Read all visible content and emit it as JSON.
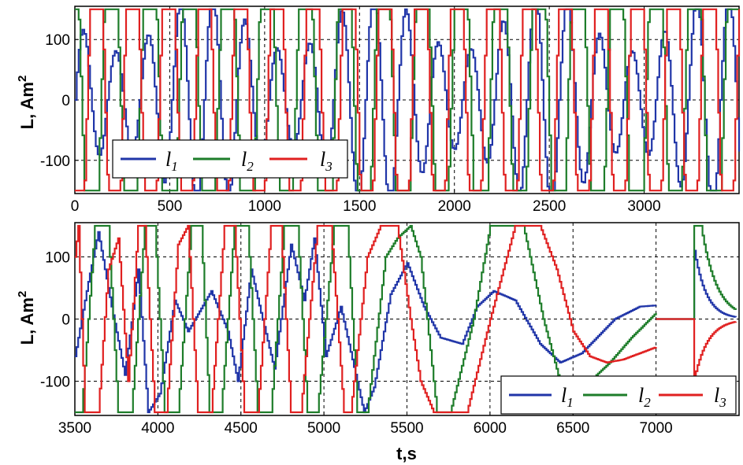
{
  "colors": {
    "l1": "#2035a8",
    "l2": "#1e7d2a",
    "l3": "#e02020"
  },
  "chart_data": [
    {
      "type": "line",
      "title": "",
      "xlabel": "",
      "ylabel_main": "L, Am",
      "ylabel_sup": "2",
      "xlim": [
        0,
        3500
      ],
      "ylim": [
        -155,
        155
      ],
      "xticks": [
        "0",
        "500",
        "1000",
        "1500",
        "2000",
        "2500",
        "3000"
      ],
      "xtick_values": [
        0,
        500,
        1000,
        1500,
        2000,
        2500,
        3000
      ],
      "yticks": [
        "100",
        "0",
        "-100"
      ],
      "ytick_values": [
        100,
        0,
        -100
      ],
      "grid": true,
      "legend_position": "bottom-left",
      "series": [
        {
          "name": "l",
          "sub": "1",
          "color_key": "l1",
          "saturation": 150,
          "segments": [
            {
              "t0": 0,
              "t1": 3500,
              "period": 170,
              "amp": 180,
              "phase": 0.0,
              "amp_mod": 0.55,
              "mod_period": 900
            }
          ]
        },
        {
          "name": "l",
          "sub": "2",
          "color_key": "l2",
          "saturation": 150,
          "segments": [
            {
              "t0": 0,
              "t1": 3500,
              "period": 205,
              "amp": 320,
              "phase": 2.1,
              "amp_mod": 0.0,
              "mod_period": 1000
            }
          ]
        },
        {
          "name": "l",
          "sub": "3",
          "color_key": "l3",
          "saturation": 150,
          "segments": [
            {
              "t0": 0,
              "t1": 3500,
              "period": 190,
              "amp": 320,
              "phase": 4.2,
              "amp_mod": 0.0,
              "mod_period": 1000
            }
          ]
        }
      ]
    },
    {
      "type": "line",
      "title": "",
      "xlabel": "t,s",
      "ylabel_main": "L, Am",
      "ylabel_sup": "2",
      "xlim": [
        3500,
        7500
      ],
      "ylim": [
        -155,
        155
      ],
      "xticks": [
        "3500",
        "4000",
        "4500",
        "5000",
        "5500",
        "6000",
        "6500",
        "7000"
      ],
      "xtick_values": [
        3500,
        4000,
        4500,
        5000,
        5500,
        6000,
        6500,
        7000
      ],
      "yticks": [
        "100",
        "0",
        "-100"
      ],
      "ytick_values": [
        100,
        0,
        -100
      ],
      "grid": true,
      "legend_position": "bottom-right",
      "series": [
        {
          "name": "l",
          "sub": "1",
          "color_key": "l1",
          "saturation": 150,
          "keypoints": [
            [
              3500,
              -60
            ],
            [
              3580,
              60
            ],
            [
              3640,
              140
            ],
            [
              3720,
              20
            ],
            [
              3800,
              -90
            ],
            [
              3880,
              80
            ],
            [
              3940,
              -150
            ],
            [
              4010,
              -120
            ],
            [
              4100,
              30
            ],
            [
              4180,
              -20
            ],
            [
              4320,
              45
            ],
            [
              4420,
              -20
            ],
            [
              4480,
              -100
            ],
            [
              4560,
              80
            ],
            [
              4620,
              10
            ],
            [
              4700,
              -80
            ],
            [
              4800,
              120
            ],
            [
              4880,
              30
            ],
            [
              4940,
              130
            ],
            [
              5010,
              -60
            ],
            [
              5100,
              20
            ],
            [
              5240,
              -150
            ],
            [
              5300,
              -110
            ],
            [
              5400,
              40
            ],
            [
              5500,
              90
            ],
            [
              5600,
              20
            ],
            [
              5700,
              -30
            ],
            [
              5830,
              -40
            ],
            [
              5920,
              20
            ],
            [
              6020,
              45
            ],
            [
              6150,
              30
            ],
            [
              6300,
              -40
            ],
            [
              6420,
              -70
            ],
            [
              6550,
              -55
            ],
            [
              6750,
              0
            ],
            [
              6900,
              20
            ],
            [
              7000,
              22
            ]
          ],
          "tail": {
            "t0": 7230,
            "t1": 7480,
            "v0": 110,
            "tau": 70
          }
        },
        {
          "name": "l",
          "sub": "2",
          "color_key": "l2",
          "saturation": 150,
          "keypoints": [
            [
              3500,
              -150
            ],
            [
              3540,
              -150
            ],
            [
              3620,
              150
            ],
            [
              3700,
              150
            ],
            [
              3760,
              -150
            ],
            [
              3840,
              -150
            ],
            [
              3920,
              150
            ],
            [
              3980,
              150
            ],
            [
              4040,
              -150
            ],
            [
              4120,
              -150
            ],
            [
              4200,
              150
            ],
            [
              4260,
              150
            ],
            [
              4310,
              -150
            ],
            [
              4380,
              -150
            ],
            [
              4460,
              150
            ],
            [
              4540,
              150
            ],
            [
              4600,
              -150
            ],
            [
              4680,
              -150
            ],
            [
              4760,
              150
            ],
            [
              4840,
              150
            ],
            [
              4900,
              -150
            ],
            [
              4960,
              -150
            ],
            [
              5060,
              150
            ],
            [
              5140,
              150
            ],
            [
              5200,
              -150
            ],
            [
              5260,
              -150
            ],
            [
              5370,
              100
            ],
            [
              5440,
              130
            ],
            [
              5520,
              150
            ],
            [
              5580,
              100
            ],
            [
              5680,
              -150
            ],
            [
              5760,
              -150
            ],
            [
              5900,
              0
            ],
            [
              6000,
              150
            ],
            [
              6200,
              150
            ],
            [
              6320,
              0
            ],
            [
              6430,
              -110
            ],
            [
              6500,
              -115
            ],
            [
              6600,
              -100
            ],
            [
              6720,
              -70
            ],
            [
              6850,
              -30
            ],
            [
              7000,
              10
            ]
          ],
          "tail": {
            "t0": 7230,
            "t1": 7480,
            "v0": 150,
            "tau": 90,
            "hold": 40
          }
        },
        {
          "name": "l",
          "sub": "3",
          "color_key": "l3",
          "saturation": 150,
          "keypoints": [
            [
              3500,
              100
            ],
            [
              3520,
              150
            ],
            [
              3560,
              -150
            ],
            [
              3640,
              -150
            ],
            [
              3700,
              80
            ],
            [
              3760,
              130
            ],
            [
              3820,
              -100
            ],
            [
              3880,
              150
            ],
            [
              3920,
              150
            ],
            [
              3980,
              -150
            ],
            [
              4050,
              -150
            ],
            [
              4120,
              120
            ],
            [
              4180,
              150
            ],
            [
              4240,
              -150
            ],
            [
              4320,
              -150
            ],
            [
              4400,
              150
            ],
            [
              4460,
              150
            ],
            [
              4520,
              -150
            ],
            [
              4600,
              -150
            ],
            [
              4680,
              150
            ],
            [
              4740,
              150
            ],
            [
              4800,
              -150
            ],
            [
              4860,
              -150
            ],
            [
              4960,
              150
            ],
            [
              5040,
              150
            ],
            [
              5120,
              -150
            ],
            [
              5160,
              -150
            ],
            [
              5260,
              100
            ],
            [
              5340,
              150
            ],
            [
              5440,
              150
            ],
            [
              5520,
              0
            ],
            [
              5580,
              -100
            ],
            [
              5660,
              -150
            ],
            [
              5760,
              -150
            ],
            [
              5860,
              -150
            ],
            [
              6000,
              0
            ],
            [
              6150,
              150
            ],
            [
              6300,
              150
            ],
            [
              6400,
              80
            ],
            [
              6500,
              -20
            ],
            [
              6600,
              -60
            ],
            [
              6700,
              -70
            ],
            [
              6800,
              -65
            ],
            [
              6900,
              -55
            ],
            [
              7000,
              -45
            ]
          ],
          "tail": {
            "t0": 7230,
            "t1": 7480,
            "v0": -95,
            "tau": 80
          }
        }
      ]
    }
  ]
}
